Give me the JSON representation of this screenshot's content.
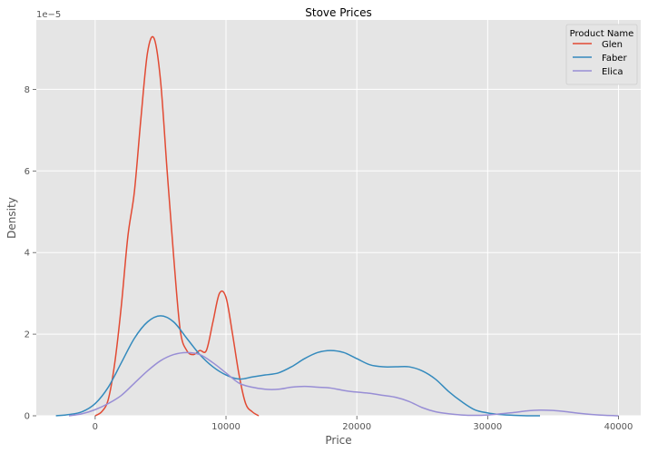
{
  "chart_data": {
    "type": "line",
    "title": "Stove Prices",
    "xlabel": "Price",
    "ylabel": "Density",
    "y_offset_label": "1e−5",
    "xlim": [
      -4500,
      41700
    ],
    "ylim": [
      0,
      9.7
    ],
    "xticks": [
      0,
      10000,
      20000,
      30000,
      40000
    ],
    "yticks": [
      0,
      2,
      4,
      6,
      8
    ],
    "grid": true,
    "legend": {
      "title": "Product Name",
      "placement": "top-right"
    },
    "series": [
      {
        "name": "Glen",
        "color": "#e24a33",
        "x": [
          0,
          500,
          1000,
          1500,
          2000,
          2500,
          3000,
          3500,
          4000,
          4500,
          5000,
          5500,
          6000,
          6500,
          7000,
          7500,
          8000,
          8500,
          9000,
          9500,
          10000,
          10500,
          11000,
          11500,
          12000,
          12500
        ],
        "y": [
          0.0,
          0.1,
          0.4,
          1.3,
          2.7,
          4.4,
          5.5,
          7.3,
          8.9,
          9.25,
          8.2,
          6.0,
          3.9,
          2.1,
          1.6,
          1.5,
          1.6,
          1.6,
          2.3,
          3.0,
          2.9,
          2.0,
          1.0,
          0.3,
          0.1,
          0.0
        ]
      },
      {
        "name": "Faber",
        "color": "#348abd",
        "x": [
          -3000,
          -2000,
          -1000,
          0,
          1000,
          2000,
          3000,
          4000,
          5000,
          6000,
          7000,
          8000,
          9000,
          10000,
          11000,
          12000,
          13000,
          14000,
          15000,
          16000,
          17000,
          18000,
          19000,
          20000,
          21000,
          22000,
          23000,
          24000,
          25000,
          26000,
          27000,
          28000,
          29000,
          30000,
          31000,
          32000,
          33000,
          34000
        ],
        "y": [
          0.0,
          0.03,
          0.1,
          0.3,
          0.7,
          1.3,
          1.9,
          2.3,
          2.45,
          2.3,
          1.9,
          1.5,
          1.2,
          1.0,
          0.9,
          0.95,
          1.0,
          1.05,
          1.2,
          1.4,
          1.55,
          1.6,
          1.55,
          1.4,
          1.25,
          1.2,
          1.2,
          1.2,
          1.1,
          0.9,
          0.6,
          0.35,
          0.15,
          0.07,
          0.03,
          0.01,
          0.0,
          0.0
        ]
      },
      {
        "name": "Elica",
        "color": "#988ed5",
        "x": [
          -2000,
          -1000,
          0,
          1000,
          2000,
          3000,
          4000,
          5000,
          6000,
          7000,
          8000,
          9000,
          10000,
          11000,
          12000,
          13000,
          14000,
          15000,
          16000,
          17000,
          18000,
          19000,
          20000,
          21000,
          22000,
          23000,
          24000,
          25000,
          26000,
          27000,
          28000,
          29000,
          30000,
          31000,
          32000,
          33000,
          34000,
          35000,
          36000,
          37000,
          38000,
          39000,
          40000
        ],
        "y": [
          0.0,
          0.05,
          0.15,
          0.3,
          0.5,
          0.8,
          1.1,
          1.35,
          1.5,
          1.55,
          1.5,
          1.3,
          1.05,
          0.8,
          0.7,
          0.65,
          0.65,
          0.7,
          0.72,
          0.7,
          0.68,
          0.62,
          0.58,
          0.55,
          0.5,
          0.45,
          0.35,
          0.2,
          0.1,
          0.05,
          0.02,
          0.01,
          0.02,
          0.05,
          0.08,
          0.12,
          0.14,
          0.13,
          0.1,
          0.06,
          0.03,
          0.01,
          0.0
        ]
      }
    ]
  }
}
